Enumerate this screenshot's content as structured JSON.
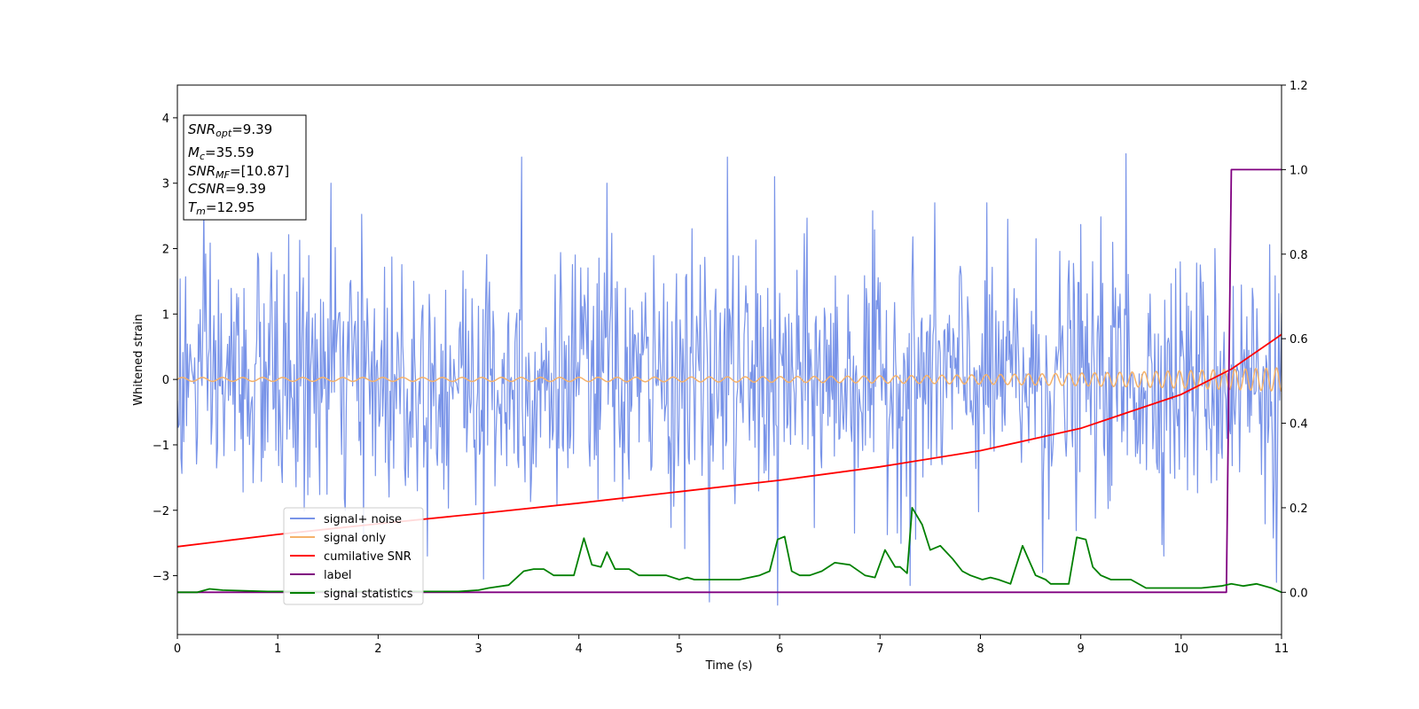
{
  "chart_data": {
    "type": "line",
    "xlabel": "Time (s)",
    "ylabel": "Whitened strain",
    "xlim": [
      0,
      11
    ],
    "ylim_left": [
      -3.9,
      4.5
    ],
    "ylim_right": [
      -0.1,
      1.2
    ],
    "x_ticks": [
      0,
      1,
      2,
      3,
      4,
      5,
      6,
      7,
      8,
      9,
      10,
      11
    ],
    "y_ticks_left": [
      -3,
      -2,
      -1,
      0,
      1,
      2,
      3,
      4
    ],
    "y_ticks_right": [
      0.0,
      0.2,
      0.4,
      0.6,
      0.8,
      1.0,
      1.2
    ],
    "y_tick_labels_left": [
      "−3",
      "−2",
      "−1",
      "0",
      "1",
      "2",
      "3",
      "4"
    ],
    "y_tick_labels_right": [
      "0.0",
      "0.2",
      "0.4",
      "0.6",
      "0.8",
      "1.0",
      "1.2"
    ],
    "grid": false,
    "legend_position": "lower-left",
    "annotation": {
      "lines": [
        {
          "main": "SNR",
          "sub": "opt",
          "rest": "=9.39"
        },
        {
          "main": "M",
          "sub": "c",
          "rest": "=35.59"
        },
        {
          "main": "SNR",
          "sub": "MF",
          "rest": "=[10.87]"
        },
        {
          "main": "CSNR",
          "sub": "",
          "rest": "=9.39"
        },
        {
          "main": "T",
          "sub": "m",
          "rest": "=12.95"
        }
      ]
    },
    "series": [
      {
        "name": "signal+ noise",
        "axis": "left",
        "color": "#7893e8",
        "kind": "noise",
        "sample_rate": 110,
        "amplitude_std": 0.95,
        "spikes": [
          {
            "x": 3.43,
            "y": 3.4
          },
          {
            "x": 5.48,
            "y": 3.4
          },
          {
            "x": 9.45,
            "y": 3.45
          },
          {
            "x": 5.95,
            "y": 3.1
          },
          {
            "x": 4.28,
            "y": 3.0
          },
          {
            "x": 1.53,
            "y": 3.0
          },
          {
            "x": 5.3,
            "y": -3.4
          },
          {
            "x": 5.98,
            "y": -3.45
          },
          {
            "x": 7.3,
            "y": -3.15
          },
          {
            "x": 10.95,
            "y": -3.1
          },
          {
            "x": 3.05,
            "y": -3.05
          },
          {
            "x": 8.62,
            "y": -2.95
          }
        ]
      },
      {
        "name": "signal only",
        "axis": "left",
        "color": "#f5b26b",
        "kind": "chirp",
        "t_merge": 12.95,
        "amp_start": 0.03,
        "amp_end": 0.18,
        "freq_start": 5.0,
        "freq_end": 10.0
      },
      {
        "name": "cumilative SNR",
        "axis": "right",
        "color": "#ff0000",
        "x": [
          0,
          1,
          2,
          3,
          4,
          5,
          6,
          7,
          8,
          9,
          10,
          10.5,
          11
        ],
        "y": [
          0.108,
          0.137,
          0.162,
          0.186,
          0.211,
          0.238,
          0.265,
          0.297,
          0.335,
          0.388,
          0.468,
          0.528,
          0.61
        ]
      },
      {
        "name": "label",
        "axis": "right",
        "color": "#800080",
        "x": [
          0,
          10.45,
          10.5,
          11
        ],
        "y": [
          0,
          0,
          1,
          1
        ]
      },
      {
        "name": "signal statistics",
        "axis": "right",
        "color": "#008000",
        "x": [
          0,
          0.2,
          0.32,
          0.45,
          0.6,
          0.9,
          1.2,
          1.5,
          1.8,
          2.1,
          2.5,
          2.8,
          3.0,
          3.1,
          3.3,
          3.45,
          3.55,
          3.65,
          3.75,
          3.85,
          3.95,
          4.05,
          4.13,
          4.22,
          4.28,
          4.36,
          4.5,
          4.6,
          4.68,
          4.75,
          4.87,
          5.0,
          5.08,
          5.15,
          5.25,
          5.4,
          5.6,
          5.8,
          5.9,
          5.98,
          6.05,
          6.12,
          6.2,
          6.3,
          6.42,
          6.55,
          6.7,
          6.85,
          6.95,
          7.05,
          7.15,
          7.2,
          7.27,
          7.32,
          7.42,
          7.5,
          7.6,
          7.72,
          7.82,
          7.9,
          8.02,
          8.1,
          8.18,
          8.3,
          8.42,
          8.55,
          8.65,
          8.7,
          8.78,
          8.88,
          8.96,
          9.05,
          9.12,
          9.2,
          9.3,
          9.4,
          9.5,
          9.65,
          9.8,
          10.0,
          10.2,
          10.4,
          10.5,
          10.62,
          10.75,
          10.9,
          11.0
        ],
        "y": [
          0.0,
          0.0,
          0.008,
          0.005,
          0.004,
          0.002,
          0.002,
          0.002,
          0.002,
          0.002,
          0.002,
          0.002,
          0.005,
          0.01,
          0.017,
          0.05,
          0.055,
          0.055,
          0.04,
          0.04,
          0.04,
          0.128,
          0.065,
          0.06,
          0.095,
          0.055,
          0.055,
          0.04,
          0.04,
          0.04,
          0.04,
          0.03,
          0.035,
          0.03,
          0.03,
          0.03,
          0.03,
          0.04,
          0.05,
          0.125,
          0.132,
          0.05,
          0.04,
          0.04,
          0.05,
          0.07,
          0.065,
          0.04,
          0.035,
          0.1,
          0.06,
          0.06,
          0.045,
          0.2,
          0.16,
          0.1,
          0.11,
          0.08,
          0.05,
          0.04,
          0.03,
          0.035,
          0.03,
          0.02,
          0.11,
          0.04,
          0.03,
          0.02,
          0.02,
          0.02,
          0.13,
          0.125,
          0.06,
          0.04,
          0.03,
          0.03,
          0.03,
          0.01,
          0.01,
          0.01,
          0.01,
          0.015,
          0.02,
          0.015,
          0.02,
          0.01,
          0.0
        ]
      }
    ]
  }
}
